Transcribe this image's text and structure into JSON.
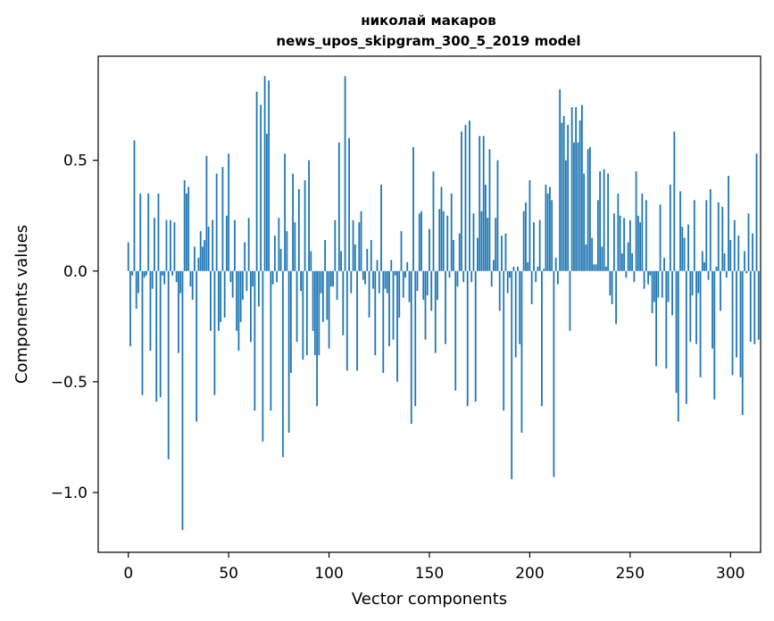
{
  "chart_data": {
    "type": "bar",
    "title_line1": "николай макаров",
    "title_line2": "news_upos_skipgram_300_5_2019 model",
    "xlabel": "Vector components",
    "ylabel": "Components values",
    "xlim": [
      -15,
      315
    ],
    "ylim": [
      -1.27,
      0.97
    ],
    "xticks": [
      0,
      50,
      100,
      150,
      200,
      250,
      300
    ],
    "xtick_labels": [
      "0",
      "50",
      "100",
      "150",
      "200",
      "250",
      "300"
    ],
    "yticks": [
      -1.0,
      -0.5,
      0.0,
      0.5
    ],
    "ytick_labels": [
      "−1.0",
      "−0.5",
      "0.0",
      "0.5"
    ],
    "bar_color": "#1f77b4",
    "values": [
      0.13,
      -0.34,
      -0.02,
      0.59,
      -0.17,
      -0.1,
      0.35,
      -0.56,
      -0.03,
      -0.02,
      0.35,
      -0.36,
      -0.08,
      0.24,
      -0.59,
      0.35,
      -0.57,
      -0.02,
      -0.06,
      0.23,
      -0.85,
      0.23,
      -0.02,
      0.22,
      -0.05,
      -0.37,
      -0.1,
      -1.17,
      0.41,
      0.35,
      0.38,
      -0.07,
      -0.13,
      0.11,
      -0.68,
      0.06,
      0.18,
      0.11,
      0.14,
      0.52,
      0.2,
      -0.27,
      0.23,
      -0.56,
      0.44,
      -0.27,
      -0.23,
      0.47,
      -0.21,
      0.25,
      0.53,
      -0.05,
      -0.12,
      0.23,
      -0.27,
      -0.36,
      -0.23,
      -0.13,
      0.13,
      -0.09,
      0.24,
      -0.32,
      -0.07,
      -0.63,
      0.81,
      -0.16,
      0.75,
      -0.77,
      0.88,
      0.62,
      0.86,
      -0.63,
      -0.06,
      0.16,
      -0.05,
      0.24,
      0.1,
      -0.84,
      0.53,
      0.18,
      -0.73,
      -0.46,
      0.44,
      0.22,
      -0.32,
      0.37,
      -0.09,
      -0.4,
      0.41,
      -0.38,
      0.5,
      0.09,
      -0.27,
      -0.38,
      -0.61,
      -0.38,
      -0.1,
      -0.23,
      0.14,
      -0.22,
      -0.35,
      -0.07,
      -0.07,
      0.23,
      -0.13,
      0.58,
      0.09,
      -0.29,
      0.88,
      -0.45,
      0.6,
      -0.1,
      0.23,
      0.12,
      -0.45,
      0.22,
      0.27,
      -0.04,
      -0.06,
      0.1,
      -0.21,
      0.14,
      -0.08,
      -0.38,
      0.05,
      -0.1,
      0.39,
      -0.46,
      -0.08,
      -0.1,
      -0.34,
      0.05,
      -0.31,
      -0.02,
      -0.5,
      -0.21,
      0.18,
      -0.12,
      -0.03,
      0.04,
      -0.14,
      -0.69,
      0.56,
      -0.61,
      -0.09,
      0.26,
      0.27,
      -0.13,
      -0.31,
      -0.11,
      0.19,
      -0.18,
      0.45,
      -0.37,
      -0.13,
      0.28,
      0.38,
      0.27,
      -0.33,
      0.25,
      -0.03,
      0.35,
      0.14,
      -0.54,
      -0.07,
      0.17,
      0.63,
      -0.05,
      0.66,
      -0.61,
      0.68,
      -0.05,
      0.26,
      -0.59,
      0.15,
      0.61,
      0.27,
      0.61,
      0.39,
      0.24,
      0.55,
      -0.07,
      0.05,
      0.24,
      0.5,
      -0.18,
      0.16,
      -0.63,
      0.17,
      -0.1,
      -0.03,
      -0.94,
      0.02,
      -0.39,
      0.02,
      -0.33,
      -0.73,
      0.27,
      0.31,
      0.04,
      0.41,
      -0.15,
      0.22,
      -0.05,
      0.02,
      0.23,
      -0.61,
      0.01,
      0.39,
      0.35,
      0.38,
      0.32,
      -0.93,
      0.06,
      -0.06,
      0.82,
      0.67,
      0.7,
      0.5,
      0.66,
      -0.27,
      0.74,
      0.58,
      0.74,
      0.58,
      0.68,
      0.75,
      0.44,
      0.12,
      0.55,
      0.56,
      0.15,
      0.03,
      0.03,
      0.32,
      0.45,
      0.11,
      0.46,
      0.02,
      0.44,
      -0.11,
      -0.15,
      0.26,
      -0.24,
      0.35,
      0.25,
      0.08,
      0.24,
      -0.03,
      0.13,
      0.23,
      0.08,
      -0.05,
      0.45,
      0.25,
      0.22,
      0.35,
      -0.08,
      0.32,
      -0.06,
      -0.02,
      -0.19,
      -0.14,
      -0.43,
      -0.12,
      0.3,
      -0.12,
      0.06,
      -0.44,
      -0.14,
      0.39,
      -0.2,
      0.63,
      -0.55,
      -0.68,
      0.36,
      0.2,
      0.15,
      -0.6,
      0.21,
      -0.32,
      -0.11,
      0.32,
      -0.33,
      -0.1,
      -0.48,
      0.09,
      0.04,
      0.32,
      -0.04,
      0.37,
      -0.35,
      -0.58,
      0.02,
      0.31,
      -0.18,
      0.29,
      0.08,
      -0.03,
      0.43,
      0.14,
      -0.47,
      0.23,
      -0.39,
      0.16,
      -0.48,
      -0.65,
      0.09,
      -0.01,
      0.26,
      -0.32,
      0.17,
      -0.33,
      0.53,
      -0.31
    ]
  }
}
